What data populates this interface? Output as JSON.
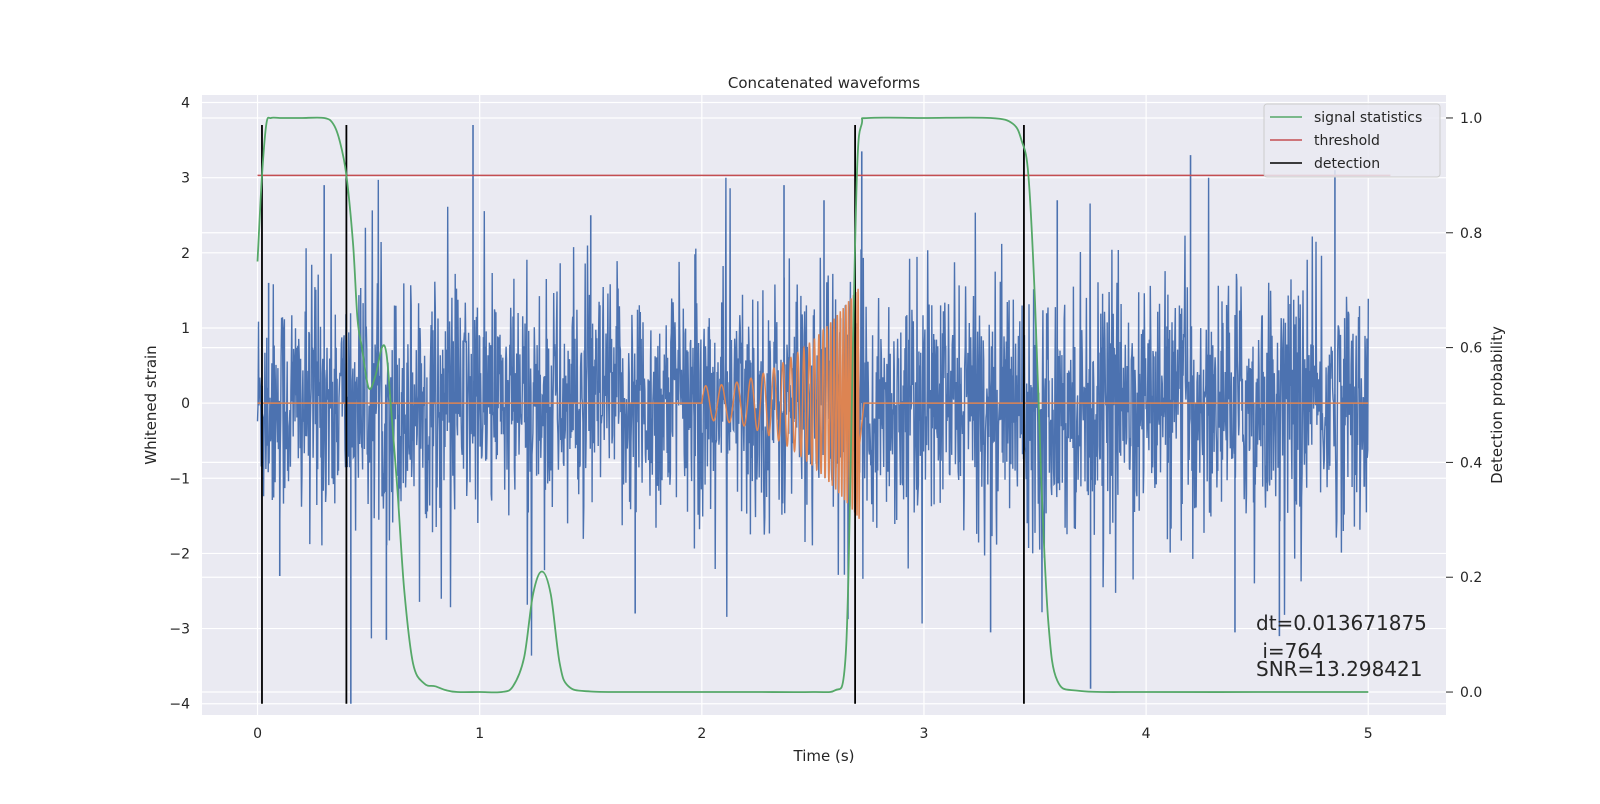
{
  "chart_data": {
    "type": "line",
    "title": "Concatenated waveforms",
    "xlabel": "Time (s)",
    "ylabel": "Whitened strain",
    "y2label": "Detection probability",
    "xlim": [
      -0.25,
      5.35
    ],
    "ylim": [
      -4.15,
      4.1
    ],
    "y2lim": [
      -0.04,
      1.04
    ],
    "x_ticks": [
      0,
      1,
      2,
      3,
      4,
      5
    ],
    "y_ticks": [
      -4,
      -3,
      -2,
      -1,
      0,
      1,
      2,
      3,
      4
    ],
    "y2_ticks": [
      0.0,
      0.2,
      0.4,
      0.6,
      0.8,
      1.0
    ],
    "y2_tick_labels": [
      "0.0",
      "0.2",
      "0.4",
      "0.6",
      "0.8",
      "1.0"
    ],
    "grid": true,
    "legend_position": "top-right",
    "colors": {
      "strain": "#4c72b0",
      "template": "#dd8452",
      "signal_statistics": "#55a868",
      "threshold": "#c44e52",
      "detection": "#000000",
      "background": "#eaeaf2",
      "grid": "#ffffff"
    },
    "series": [
      {
        "name": "signal statistics",
        "axis": "right",
        "x": [
          0.0,
          0.02,
          0.04,
          0.06,
          0.1,
          0.15,
          0.2,
          0.3,
          0.34,
          0.37,
          0.4,
          0.43,
          0.45,
          0.47,
          0.5,
          0.53,
          0.56,
          0.58,
          0.6,
          0.63,
          0.66,
          0.7,
          0.75,
          0.8,
          0.85,
          0.9,
          1.0,
          1.1,
          1.15,
          1.2,
          1.24,
          1.28,
          1.32,
          1.36,
          1.4,
          1.5,
          1.8,
          2.2,
          2.5,
          2.6,
          2.64,
          2.66,
          2.68,
          2.7,
          2.72,
          2.75,
          3.0,
          3.3,
          3.4,
          3.44,
          3.47,
          3.5,
          3.53,
          3.56,
          3.6,
          3.7,
          4.0,
          4.5,
          5.0
        ],
        "y": [
          0.75,
          0.9,
          0.99,
          1.0,
          1.0,
          1.0,
          1.0,
          1.0,
          0.99,
          0.96,
          0.9,
          0.78,
          0.65,
          0.6,
          0.53,
          0.55,
          0.6,
          0.59,
          0.5,
          0.35,
          0.18,
          0.05,
          0.015,
          0.01,
          0.003,
          0.0,
          0.0,
          0.0,
          0.01,
          0.06,
          0.17,
          0.21,
          0.17,
          0.05,
          0.01,
          0.001,
          0.0,
          0.0,
          0.0,
          0.003,
          0.03,
          0.2,
          0.6,
          0.92,
          0.99,
          1.0,
          1.0,
          1.0,
          0.99,
          0.96,
          0.9,
          0.68,
          0.35,
          0.12,
          0.02,
          0.002,
          0.0,
          0.0,
          0.0
        ]
      },
      {
        "name": "threshold",
        "axis": "right",
        "x": [
          0.0,
          5.1
        ],
        "y": [
          0.9,
          0.9
        ]
      },
      {
        "name": "detection",
        "axis": "left",
        "x": [
          0.02,
          0.4,
          2.69,
          3.45
        ],
        "y_range": [
          -4.0,
          3.7
        ]
      }
    ],
    "strain": {
      "axis": "left",
      "x_range": [
        0.0,
        5.0
      ],
      "approx_amplitude": 2.0,
      "spikes": [
        [
          0.97,
          3.7
        ],
        [
          0.42,
          -4.0
        ],
        [
          0.3,
          2.9
        ],
        [
          2.55,
          2.7
        ],
        [
          4.2,
          3.3
        ],
        [
          4.85,
          3.1
        ],
        [
          4.6,
          -3.1
        ],
        [
          3.75,
          -3.8
        ],
        [
          0.58,
          -3.15
        ],
        [
          2.72,
          3.35
        ],
        [
          0.05,
          1.6
        ],
        [
          0.1,
          -2.3
        ],
        [
          1.5,
          2.5
        ],
        [
          2.37,
          2.9
        ],
        [
          3.6,
          2.7
        ],
        [
          4.4,
          -3.05
        ],
        [
          1.7,
          -2.8
        ],
        [
          3.3,
          -3.05
        ]
      ]
    },
    "template": {
      "axis": "left",
      "name": "",
      "start": 2.0,
      "merger": 2.71,
      "amplitude_start": 0.23,
      "amplitude_merger": 1.55
    },
    "annotations": [
      "dt=0.013671875",
      " i=764",
      "SNR=13.298421"
    ],
    "legend": [
      "signal statistics",
      "threshold",
      "detection"
    ]
  }
}
